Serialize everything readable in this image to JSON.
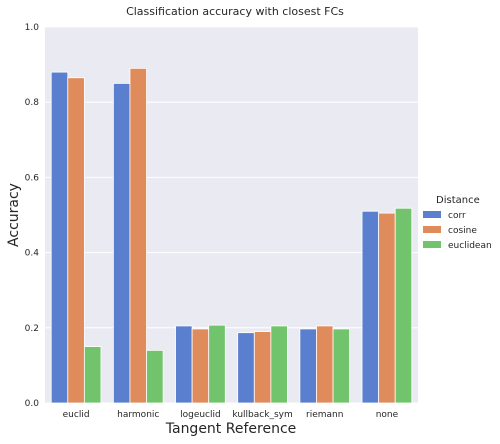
{
  "chart_data": {
    "type": "bar",
    "title": "Classification accuracy with closest FCs",
    "xlabel": "Tangent Reference",
    "ylabel": "Accuracy",
    "categories": [
      "euclid",
      "harmonic",
      "logeuclid",
      "kullback_sym",
      "riemann",
      "none"
    ],
    "ylim": [
      0,
      1
    ],
    "yticks": [
      "0.0",
      "0.2",
      "0.4",
      "0.6",
      "0.8",
      "1.0"
    ],
    "grid": true,
    "legend_title": "Distance",
    "legend_position": "right",
    "series": [
      {
        "name": "corr",
        "color": "#5a7fcf",
        "values": [
          0.88,
          0.85,
          0.205,
          0.187,
          0.197,
          0.51
        ]
      },
      {
        "name": "cosine",
        "color": "#df8b5b",
        "values": [
          0.865,
          0.89,
          0.197,
          0.19,
          0.205,
          0.505
        ]
      },
      {
        "name": "euclidean",
        "color": "#72c46c",
        "values": [
          0.15,
          0.14,
          0.207,
          0.205,
          0.197,
          0.518
        ]
      }
    ],
    "background_color": "#eaeaf2"
  }
}
